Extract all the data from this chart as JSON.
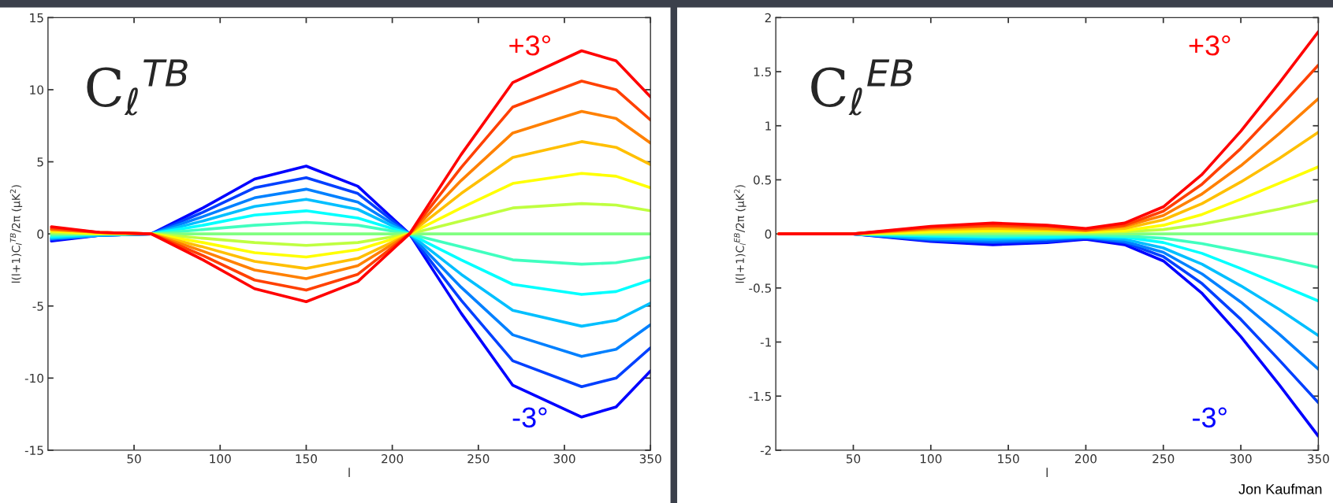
{
  "chart_data": [
    {
      "type": "line",
      "title": "C$_{ℓ}$$^{TB}$",
      "xlabel": "l",
      "ylabel": "l(l+1)C$_{l}$$^{TB}$/2π (μK$^{2}$)",
      "xlim": [
        0,
        350
      ],
      "xticks": [
        50,
        100,
        150,
        200,
        250,
        300,
        350
      ],
      "ylim": [
        -15,
        15
      ],
      "yticks": [
        -15,
        -10,
        -5,
        0,
        5,
        10,
        15
      ],
      "x": [
        2,
        30,
        60,
        90,
        120,
        150,
        180,
        210,
        240,
        270,
        310,
        330,
        350
      ],
      "series": [
        {
          "name": "-3°",
          "color": "#0000ff",
          "values": [
            -0.5,
            -0.1,
            0,
            1.8,
            3.8,
            4.7,
            3.3,
            0,
            -5.5,
            -10.5,
            -12.7,
            -12.0,
            -9.5
          ]
        },
        {
          "color": "#0040ff",
          "values": [
            -0.4,
            -0.1,
            0,
            1.5,
            3.2,
            3.9,
            2.8,
            0,
            -4.6,
            -8.8,
            -10.6,
            -10.0,
            -7.9
          ]
        },
        {
          "color": "#0080ff",
          "values": [
            -0.3,
            -0.1,
            0,
            1.2,
            2.5,
            3.1,
            2.2,
            0,
            -3.7,
            -7.0,
            -8.5,
            -8.0,
            -6.3
          ]
        },
        {
          "color": "#00bfff",
          "values": [
            -0.3,
            -0.1,
            0,
            0.9,
            1.9,
            2.4,
            1.7,
            0,
            -2.8,
            -5.3,
            -6.4,
            -6.0,
            -4.8
          ]
        },
        {
          "color": "#00ffff",
          "values": [
            -0.2,
            0,
            0,
            0.6,
            1.3,
            1.6,
            1.1,
            0,
            -1.8,
            -3.5,
            -4.2,
            -4.0,
            -3.2
          ]
        },
        {
          "color": "#40ffbf",
          "values": [
            -0.1,
            0,
            0,
            0.3,
            0.6,
            0.8,
            0.6,
            0,
            -0.9,
            -1.8,
            -2.1,
            -2.0,
            -1.6
          ]
        },
        {
          "color": "#80ff80",
          "values": [
            0,
            0,
            0,
            0,
            0,
            0,
            0,
            0,
            0,
            0,
            0,
            0,
            0
          ]
        },
        {
          "color": "#bfff40",
          "values": [
            0.1,
            0,
            0,
            -0.3,
            -0.6,
            -0.8,
            -0.6,
            0,
            0.9,
            1.8,
            2.1,
            2.0,
            1.6
          ]
        },
        {
          "color": "#ffff00",
          "values": [
            0.2,
            0,
            0,
            -0.6,
            -1.3,
            -1.6,
            -1.1,
            0,
            1.8,
            3.5,
            4.2,
            4.0,
            3.2
          ]
        },
        {
          "color": "#ffbf00",
          "values": [
            0.3,
            0.1,
            0,
            -0.9,
            -1.9,
            -2.4,
            -1.7,
            0,
            2.8,
            5.3,
            6.4,
            6.0,
            4.8
          ]
        },
        {
          "color": "#ff8000",
          "values": [
            0.3,
            0.1,
            0,
            -1.2,
            -2.5,
            -3.1,
            -2.2,
            0,
            3.7,
            7.0,
            8.5,
            8.0,
            6.3
          ]
        },
        {
          "color": "#ff4000",
          "values": [
            0.4,
            0.1,
            0,
            -1.5,
            -3.2,
            -3.9,
            -2.8,
            0,
            4.6,
            8.8,
            10.6,
            10.0,
            7.9
          ]
        },
        {
          "name": "+3°",
          "color": "#ff0000",
          "values": [
            0.5,
            0.1,
            0,
            -1.8,
            -3.8,
            -4.7,
            -3.3,
            0,
            5.5,
            10.5,
            12.7,
            12.0,
            9.5
          ]
        }
      ]
    },
    {
      "type": "line",
      "title": "C$_{ℓ}$$^{EB}$",
      "xlabel": "l",
      "ylabel": "l(l+1)C$_{l}$$^{EB}$/2π (μK$^{2}$)",
      "xlim": [
        0,
        350
      ],
      "xticks": [
        50,
        100,
        150,
        200,
        250,
        300,
        350
      ],
      "ylim": [
        -2,
        2
      ],
      "yticks": [
        -2,
        -1.5,
        -1,
        -0.5,
        0,
        0.5,
        1,
        1.5,
        2
      ],
      "x": [
        2,
        50,
        100,
        140,
        175,
        200,
        225,
        250,
        275,
        300,
        325,
        350
      ],
      "annotations": [
        "Jon Kaufman"
      ],
      "series": [
        {
          "name": "-3°",
          "color": "#0000ff",
          "values": [
            0,
            0,
            -0.07,
            -0.1,
            -0.08,
            -0.05,
            -0.1,
            -0.25,
            -0.55,
            -0.95,
            -1.4,
            -1.87
          ]
        },
        {
          "color": "#0040ff",
          "values": [
            0,
            0,
            -0.06,
            -0.08,
            -0.07,
            -0.04,
            -0.08,
            -0.21,
            -0.46,
            -0.79,
            -1.17,
            -1.56
          ]
        },
        {
          "color": "#0080ff",
          "values": [
            0,
            0,
            -0.05,
            -0.07,
            -0.05,
            -0.03,
            -0.07,
            -0.17,
            -0.37,
            -0.63,
            -0.93,
            -1.25
          ]
        },
        {
          "color": "#00bfff",
          "values": [
            0,
            0,
            -0.04,
            -0.05,
            -0.04,
            -0.03,
            -0.05,
            -0.13,
            -0.28,
            -0.48,
            -0.7,
            -0.94
          ]
        },
        {
          "color": "#00ffff",
          "values": [
            0,
            0,
            -0.02,
            -0.03,
            -0.03,
            -0.02,
            -0.03,
            -0.08,
            -0.18,
            -0.32,
            -0.47,
            -0.62
          ]
        },
        {
          "color": "#40ffbf",
          "values": [
            0,
            0,
            -0.01,
            -0.02,
            -0.01,
            -0.01,
            -0.02,
            -0.04,
            -0.09,
            -0.16,
            -0.23,
            -0.31
          ]
        },
        {
          "color": "#80ff80",
          "values": [
            0,
            0,
            0,
            0,
            0,
            0,
            0,
            0,
            0,
            0,
            0,
            0
          ]
        },
        {
          "color": "#bfff40",
          "values": [
            0,
            0,
            0.01,
            0.02,
            0.01,
            0.01,
            0.02,
            0.04,
            0.09,
            0.16,
            0.23,
            0.31
          ]
        },
        {
          "color": "#ffff00",
          "values": [
            0,
            0,
            0.02,
            0.03,
            0.03,
            0.02,
            0.03,
            0.08,
            0.18,
            0.32,
            0.47,
            0.62
          ]
        },
        {
          "color": "#ffbf00",
          "values": [
            0,
            0,
            0.04,
            0.05,
            0.04,
            0.03,
            0.05,
            0.13,
            0.28,
            0.48,
            0.7,
            0.94
          ]
        },
        {
          "color": "#ff8000",
          "values": [
            0,
            0,
            0.05,
            0.07,
            0.05,
            0.03,
            0.07,
            0.17,
            0.37,
            0.63,
            0.93,
            1.25
          ]
        },
        {
          "color": "#ff4000",
          "values": [
            0,
            0,
            0.06,
            0.08,
            0.07,
            0.04,
            0.08,
            0.21,
            0.46,
            0.79,
            1.17,
            1.56
          ]
        },
        {
          "name": "+3°",
          "color": "#ff0000",
          "values": [
            0,
            0,
            0.07,
            0.1,
            0.08,
            0.05,
            0.1,
            0.25,
            0.55,
            0.95,
            1.4,
            1.87
          ]
        }
      ]
    }
  ]
}
